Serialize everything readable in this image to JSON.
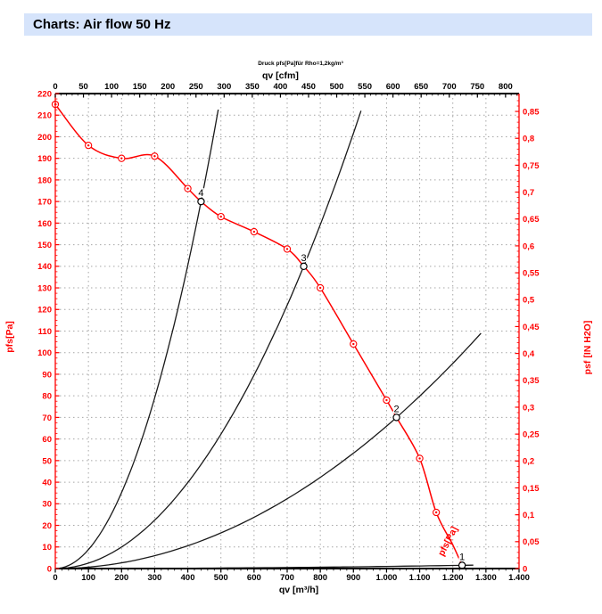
{
  "page": {
    "title": "Charts: Air flow 50 Hz"
  },
  "chart_data": {
    "type": "line",
    "note": "Druck pfs[Pa]für Rho=1,2kg/m³",
    "grid": {
      "on": true,
      "color": "#a6a6a6",
      "x_step_m3h": 100,
      "y_step_pa": 10
    },
    "axes": {
      "top": {
        "label": "qv [cfm]",
        "color": "#000000",
        "min": 0,
        "max": 824,
        "m3h_per_unit": 1.699011,
        "minor_step": 10,
        "ticks": [
          0,
          50,
          100,
          150,
          200,
          250,
          300,
          350,
          400,
          450,
          500,
          550,
          600,
          650,
          700,
          750,
          800
        ],
        "tick_labels": [
          "0",
          "50",
          "100",
          "150",
          "200",
          "250",
          "300",
          "350",
          "400",
          "450",
          "500",
          "550",
          "600",
          "650",
          "700",
          "750",
          "800"
        ]
      },
      "bottom": {
        "label": "qv [m³/h]",
        "color": "#000000",
        "min": 0,
        "max": 1400,
        "minor_step": 20,
        "ticks": [
          0,
          100,
          200,
          300,
          400,
          500,
          600,
          700,
          800,
          900,
          1000,
          1100,
          1200,
          1300,
          1400
        ],
        "tick_labels": [
          "0",
          "100",
          "200",
          "300",
          "400",
          "500",
          "600",
          "700",
          "800",
          "900",
          "1.000",
          "1.100",
          "1.200",
          "1.300",
          "1.400"
        ]
      },
      "left": {
        "label": "pfs[Pa]",
        "color": "#ff0000",
        "min": 0,
        "max": 220,
        "minor_step": 2.5,
        "ticks": [
          0,
          10,
          20,
          30,
          40,
          50,
          60,
          70,
          80,
          90,
          100,
          110,
          120,
          130,
          140,
          150,
          160,
          170,
          180,
          190,
          200,
          210,
          220
        ],
        "tick_labels": [
          "0",
          "10",
          "20",
          "30",
          "40",
          "50",
          "60",
          "70",
          "80",
          "90",
          "100",
          "110",
          "120",
          "130",
          "140",
          "150",
          "160",
          "170",
          "180",
          "190",
          "200",
          "210",
          "220"
        ]
      },
      "right": {
        "label": "psf [IN H2O]",
        "color": "#ff0000",
        "min": 0,
        "max": 0.8832,
        "pa_per_unit": 249.089,
        "minor_step": 0.01,
        "ticks": [
          0,
          0.05,
          0.1,
          0.15,
          0.2,
          0.25,
          0.3,
          0.35,
          0.4,
          0.45,
          0.5,
          0.55,
          0.6,
          0.65,
          0.7,
          0.75,
          0.8,
          0.85
        ],
        "tick_labels": [
          "0",
          "0,05",
          "0,1",
          "0,15",
          "0,2",
          "0,25",
          "0,3",
          "0,35",
          "0,4",
          "0,45",
          "0,5",
          "0,55",
          "0,6",
          "0,65",
          "0,7",
          "0,75",
          "0,8",
          "0,85"
        ]
      }
    },
    "fan_curve": {
      "name": "pfs[Pa]",
      "color": "#ff0000",
      "curve_points": [
        [
          0,
          215
        ],
        [
          100,
          196
        ],
        [
          200,
          190
        ],
        [
          300,
          191
        ],
        [
          400,
          176
        ],
        [
          440,
          170
        ],
        [
          500,
          163
        ],
        [
          600,
          156
        ],
        [
          700,
          148
        ],
        [
          750,
          140
        ],
        [
          800,
          130
        ],
        [
          900,
          104
        ],
        [
          1000,
          78
        ],
        [
          1030,
          70
        ],
        [
          1100,
          51
        ],
        [
          1150,
          26
        ],
        [
          1200,
          11
        ],
        [
          1232,
          0
        ]
      ],
      "marker_points": [
        [
          0,
          215
        ],
        [
          100,
          196
        ],
        [
          200,
          190
        ],
        [
          300,
          191
        ],
        [
          400,
          176
        ],
        [
          500,
          163
        ],
        [
          600,
          156
        ],
        [
          700,
          148
        ],
        [
          800,
          130
        ],
        [
          900,
          104
        ],
        [
          1000,
          78
        ],
        [
          1100,
          51
        ],
        [
          1150,
          26
        ]
      ],
      "curve_label": {
        "text": "pfs[Pa]",
        "qv": 1193,
        "pa": 12,
        "rotate": -63
      }
    },
    "system_curves": [
      {
        "label": "1",
        "color": "#1a1a1a",
        "k": 9.9e-07,
        "qv_end": 1262
      },
      {
        "label": "2",
        "color": "#1a1a1a",
        "k": 6.598e-05,
        "qv_end": 1285
      },
      {
        "label": "3",
        "color": "#1a1a1a",
        "k": 0.0002489,
        "qv_end": 923
      },
      {
        "label": "4",
        "color": "#1a1a1a",
        "k": 0.0008781,
        "qv_end": 492
      }
    ],
    "operating_points": [
      {
        "label": "1",
        "qv": 1228,
        "pa": 1.5
      },
      {
        "label": "2",
        "qv": 1030,
        "pa": 70
      },
      {
        "label": "3",
        "qv": 750,
        "pa": 140
      },
      {
        "label": "4",
        "qv": 440,
        "pa": 170
      }
    ]
  }
}
